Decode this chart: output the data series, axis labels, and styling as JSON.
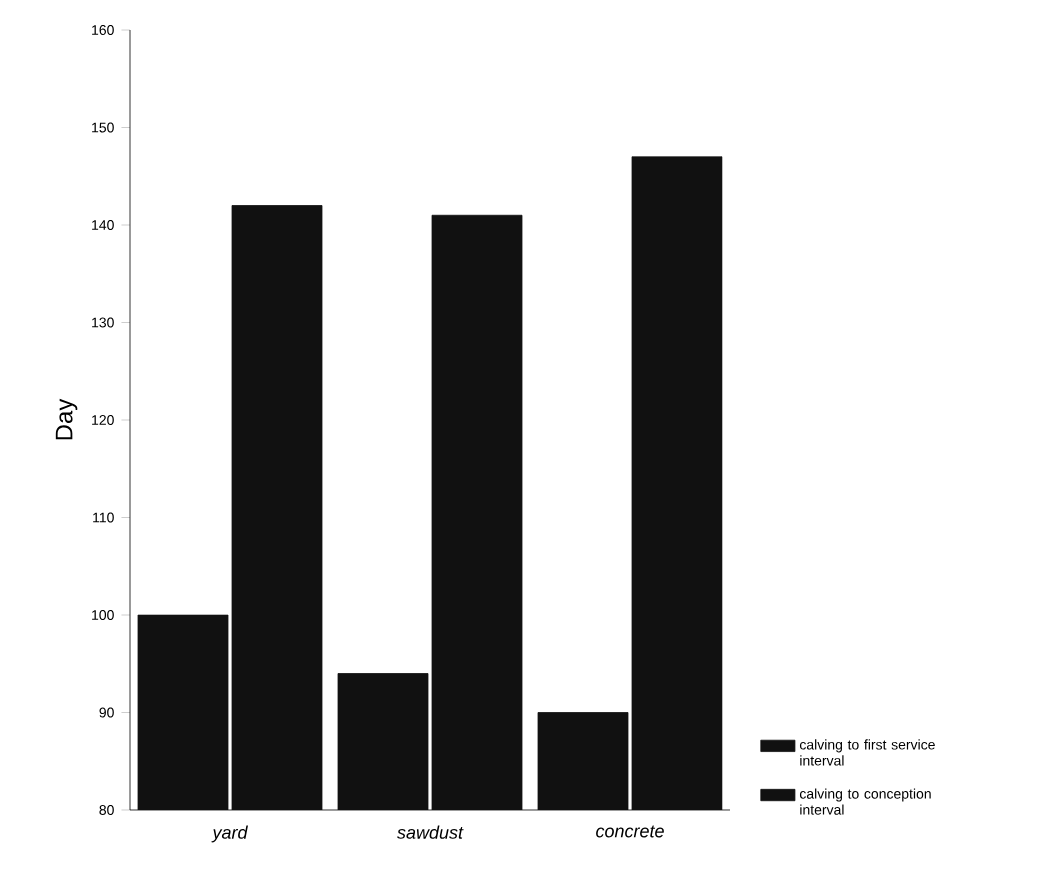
{
  "chart_data": {
    "type": "bar",
    "ylabel": "Day",
    "categories": [
      "yard",
      "sawdust",
      "concrete"
    ],
    "series": [
      {
        "name": "calving to first service interval",
        "color": "#111111",
        "values": [
          100,
          94,
          90
        ]
      },
      {
        "name": "calving to conception interval",
        "color": "#111111",
        "values": [
          142,
          141,
          147
        ]
      }
    ],
    "ylim": [
      80,
      160
    ],
    "yticks": [
      80,
      90,
      100,
      110,
      120,
      130,
      140,
      150,
      160
    ],
    "grid": false,
    "legend": "right"
  }
}
